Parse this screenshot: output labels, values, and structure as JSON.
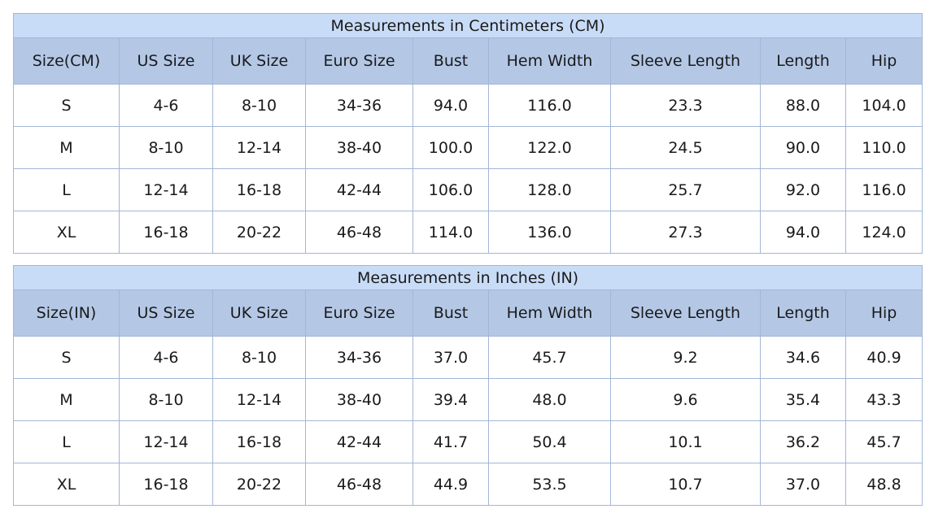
{
  "colors": {
    "title_bg": "#c9dcf7",
    "header_bg": "#b4c8e6",
    "border": "#a3b6d6"
  },
  "tables": [
    {
      "title": "Measurements in Centimeters (CM)",
      "headers": [
        "Size(CM)",
        "US Size",
        "UK Size",
        "Euro Size",
        "Bust",
        "Hem Width",
        "Sleeve Length",
        "Length",
        "Hip"
      ],
      "rows": [
        [
          "S",
          "4-6",
          "8-10",
          "34-36",
          "94.0",
          "116.0",
          "23.3",
          "88.0",
          "104.0"
        ],
        [
          "M",
          "8-10",
          "12-14",
          "38-40",
          "100.0",
          "122.0",
          "24.5",
          "90.0",
          "110.0"
        ],
        [
          "L",
          "12-14",
          "16-18",
          "42-44",
          "106.0",
          "128.0",
          "25.7",
          "92.0",
          "116.0"
        ],
        [
          "XL",
          "16-18",
          "20-22",
          "46-48",
          "114.0",
          "136.0",
          "27.3",
          "94.0",
          "124.0"
        ]
      ]
    },
    {
      "title": "Measurements in Inches (IN)",
      "headers": [
        "Size(IN)",
        "US Size",
        "UK Size",
        "Euro Size",
        "Bust",
        "Hem Width",
        "Sleeve Length",
        "Length",
        "Hip"
      ],
      "rows": [
        [
          "S",
          "4-6",
          "8-10",
          "34-36",
          "37.0",
          "45.7",
          "9.2",
          "34.6",
          "40.9"
        ],
        [
          "M",
          "8-10",
          "12-14",
          "38-40",
          "39.4",
          "48.0",
          "9.6",
          "35.4",
          "43.3"
        ],
        [
          "L",
          "12-14",
          "16-18",
          "42-44",
          "41.7",
          "50.4",
          "10.1",
          "36.2",
          "45.7"
        ],
        [
          "XL",
          "16-18",
          "20-22",
          "46-48",
          "44.9",
          "53.5",
          "10.7",
          "37.0",
          "48.8"
        ]
      ]
    }
  ]
}
